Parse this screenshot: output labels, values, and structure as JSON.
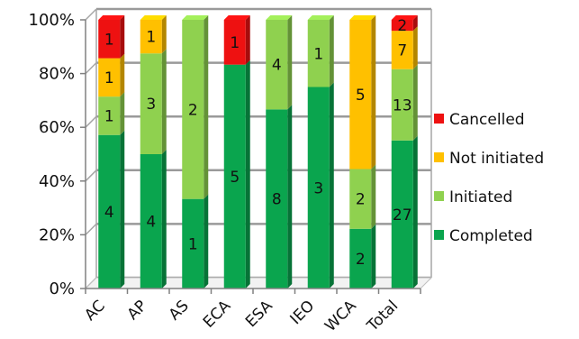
{
  "chart_data": {
    "type": "bar",
    "stacked": true,
    "percent_stacked": true,
    "categories": [
      "AC",
      "AP",
      "AS",
      "ECA",
      "ESA",
      "IEO",
      "WCA",
      "Total"
    ],
    "series": [
      {
        "name": "Completed",
        "color": "#0aa54e",
        "values": [
          4,
          4,
          1,
          5,
          8,
          3,
          2,
          27
        ]
      },
      {
        "name": "Initiated",
        "color": "#8fd14f",
        "values": [
          1,
          3,
          2,
          0,
          4,
          1,
          2,
          13
        ]
      },
      {
        "name": "Not initiated",
        "color": "#ffc000",
        "values": [
          1,
          1,
          0,
          0,
          0,
          0,
          5,
          7
        ]
      },
      {
        "name": "Cancelled",
        "color": "#ee1111",
        "values": [
          1,
          0,
          0,
          1,
          0,
          0,
          0,
          2
        ]
      }
    ],
    "y_ticks": [
      "0%",
      "20%",
      "40%",
      "60%",
      "80%",
      "100%"
    ],
    "ylim": [
      0,
      100
    ],
    "grid": true,
    "legend_position": "right",
    "legend_order": [
      "Cancelled",
      "Not initiated",
      "Initiated",
      "Completed"
    ]
  }
}
